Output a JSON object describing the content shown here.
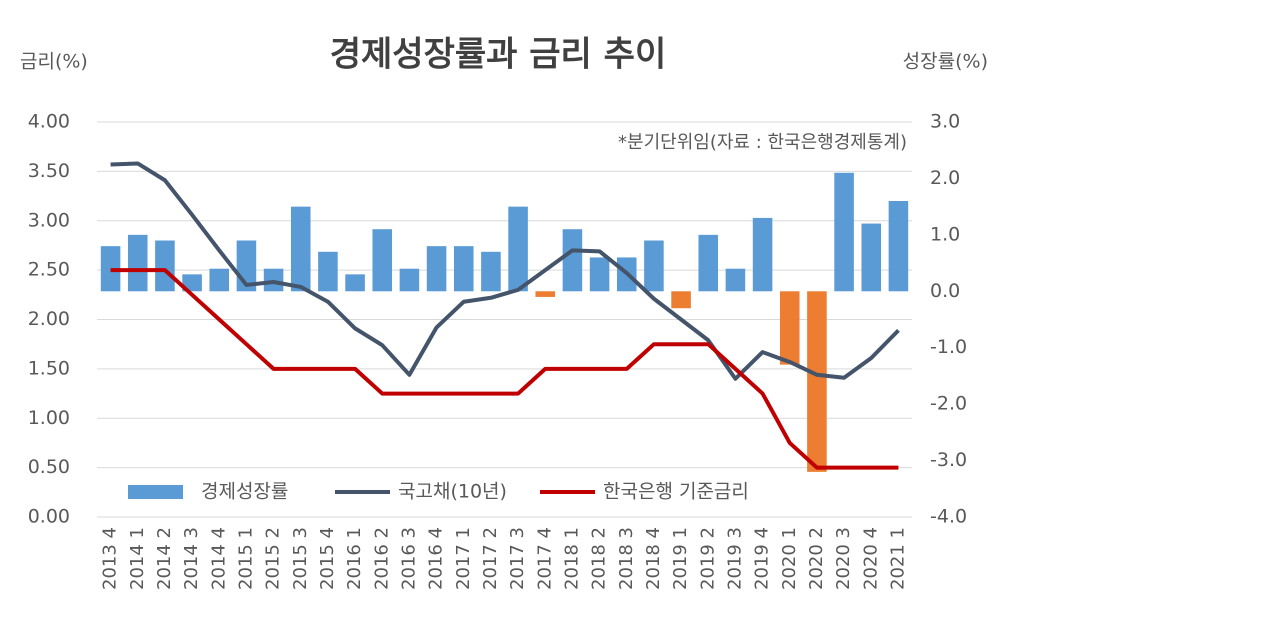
{
  "chart_data": {
    "type": "combo",
    "title": "경제성장률과 금리 추이",
    "y_label": "금리(%)",
    "y2_label": "성장률(%)",
    "note": "*분기단위임(자료 : 한국은행경제통계)",
    "categories": [
      "2013 4",
      "2014 1",
      "2014 2",
      "2014 3",
      "2014 4",
      "2015 1",
      "2015 2",
      "2015 3",
      "2015 4",
      "2016 1",
      "2016 2",
      "2016 3",
      "2016 4",
      "2017 1",
      "2017 2",
      "2017 3",
      "2017 4",
      "2018 1",
      "2018 2",
      "2018 3",
      "2018 4",
      "2019 1",
      "2019 2",
      "2019 3",
      "2019 4",
      "2020 1",
      "2020 2",
      "2020 3",
      "2020 4",
      "2021 1"
    ],
    "series": [
      {
        "name": "경제성장률",
        "type": "bar",
        "axis": "y2",
        "color": "#5b9bd5",
        "negative_color": "#ed7d31",
        "values": [
          0.8,
          1.0,
          0.9,
          0.3,
          0.4,
          0.9,
          0.4,
          1.5,
          0.7,
          0.3,
          1.1,
          0.4,
          0.8,
          0.8,
          0.7,
          1.5,
          -0.1,
          1.1,
          0.6,
          0.6,
          0.9,
          -0.3,
          1.0,
          0.4,
          1.3,
          -1.3,
          -3.2,
          2.1,
          1.2,
          1.6
        ]
      },
      {
        "name": "국고채(10년)",
        "type": "line",
        "color": "#44546a",
        "values": [
          3.57,
          3.58,
          3.41,
          3.06,
          2.7,
          2.35,
          2.38,
          2.33,
          2.18,
          1.91,
          1.74,
          1.44,
          1.92,
          2.18,
          2.22,
          2.3,
          2.5,
          2.7,
          2.69,
          2.47,
          2.21,
          2.0,
          1.79,
          1.4,
          1.67,
          1.57,
          1.44,
          1.41,
          1.61,
          1.89
        ]
      },
      {
        "name": "한국은행 기준금리",
        "type": "line",
        "color": "#c00000",
        "values": [
          2.5,
          2.5,
          2.5,
          2.25,
          2.0,
          1.75,
          1.5,
          1.5,
          1.5,
          1.5,
          1.25,
          1.25,
          1.25,
          1.25,
          1.25,
          1.25,
          1.5,
          1.5,
          1.5,
          1.5,
          1.75,
          1.75,
          1.75,
          1.5,
          1.25,
          0.75,
          0.5,
          0.5,
          0.5,
          0.5
        ]
      }
    ],
    "ylim": [
      0,
      4
    ],
    "yticks": [
      {
        "value": 0,
        "label": "0.00"
      },
      {
        "value": 0.5,
        "label": "0.50"
      },
      {
        "value": 1,
        "label": "1.00"
      },
      {
        "value": 1.5,
        "label": "1.50"
      },
      {
        "value": 2,
        "label": "2.00"
      },
      {
        "value": 2.5,
        "label": "2.50"
      },
      {
        "value": 3,
        "label": "3.00"
      },
      {
        "value": 3.5,
        "label": "3.50"
      },
      {
        "value": 4,
        "label": "4.00"
      }
    ],
    "y2lim": [
      -4,
      3
    ],
    "y2ticks": [
      {
        "value": 3,
        "label": "3.0"
      },
      {
        "value": 2,
        "label": "2.0"
      },
      {
        "value": 1,
        "label": "1.0"
      },
      {
        "value": 0,
        "label": "0.0"
      },
      {
        "value": -1,
        "label": "-1.0"
      },
      {
        "value": -2,
        "label": "-2.0"
      },
      {
        "value": -3,
        "label": "-3.0"
      },
      {
        "value": -4,
        "label": "-4.0"
      }
    ],
    "grid": true
  }
}
